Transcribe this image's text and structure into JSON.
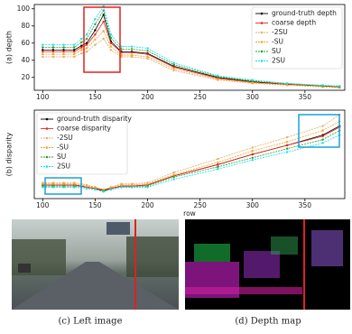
{
  "chart_data": [
    {
      "type": "line",
      "ylabel": "(a) depth",
      "legend": "upper right",
      "x": [
        100,
        110,
        120,
        130,
        137,
        142,
        150,
        158,
        165,
        175,
        185,
        200,
        225,
        267,
        300,
        333,
        367,
        383
      ],
      "xlim": [
        92,
        388
      ],
      "xticks": [
        100,
        150,
        200,
        250,
        300,
        350
      ],
      "ylim": [
        5,
        105
      ],
      "yticks": [
        20,
        40,
        60,
        80,
        100
      ],
      "series": [
        {
          "name": "ground-truth depth",
          "color": "#000000",
          "values": [
            52,
            52,
            52,
            52,
            57,
            60,
            75,
            93,
            62,
            50,
            50,
            48,
            33,
            20,
            15,
            12,
            10,
            9
          ]
        },
        {
          "name": "coarse depth",
          "color": "#e8281c",
          "values": [
            50,
            50,
            50,
            50,
            55,
            58,
            70,
            85,
            60,
            49,
            49,
            47,
            32,
            19,
            14,
            12,
            10,
            9
          ]
        },
        {
          "name": "-2SU",
          "color": "#e0b070",
          "values": [
            44,
            44,
            44,
            44,
            48,
            50,
            58,
            65,
            52,
            44,
            44,
            42,
            28,
            17,
            13,
            11,
            9,
            8
          ]
        },
        {
          "name": "-SU",
          "color": "#f5a623",
          "values": [
            47,
            47,
            47,
            47,
            52,
            54,
            64,
            74,
            56,
            46,
            46,
            44,
            30,
            18,
            14,
            11,
            9,
            8
          ]
        },
        {
          "name": "SU",
          "color": "#2ca02c",
          "values": [
            55,
            55,
            55,
            55,
            61,
            65,
            82,
            98,
            66,
            53,
            53,
            51,
            35,
            21,
            16,
            13,
            10,
            9
          ]
        },
        {
          "name": "2SU",
          "color": "#17e0f0",
          "values": [
            58,
            58,
            58,
            58,
            65,
            70,
            88,
            103,
            70,
            56,
            56,
            54,
            37,
            22,
            17,
            13,
            11,
            10
          ]
        }
      ]
    },
    {
      "type": "line",
      "ylabel": "(b) disparity",
      "xlabel": "row",
      "legend": "upper left",
      "x": [
        100,
        110,
        120,
        130,
        137,
        142,
        150,
        158,
        165,
        175,
        185,
        200,
        225,
        267,
        300,
        333,
        367,
        383
      ],
      "xlim": [
        92,
        388
      ],
      "xticks": [
        100,
        150,
        200,
        250,
        300,
        350
      ],
      "ylim": [
        0,
        78
      ],
      "series": [
        {
          "name": "ground-truth disparity",
          "color": "#000000",
          "values": [
            12,
            12,
            12,
            12,
            11,
            10,
            9,
            7,
            9,
            11,
            11,
            12,
            20,
            30,
            39,
            47,
            56,
            64
          ]
        },
        {
          "name": "coarse disparity",
          "color": "#e8281c",
          "values": [
            12,
            12,
            12,
            12,
            11,
            10,
            9,
            8,
            9,
            11,
            11,
            12,
            20,
            30,
            39,
            47,
            55,
            63
          ]
        },
        {
          "name": "-2SU",
          "color": "#e0b070",
          "values": [
            14,
            14,
            14,
            14,
            13,
            12,
            10,
            8,
            10,
            13,
            13,
            14,
            23,
            35,
            45,
            54,
            64,
            74
          ]
        },
        {
          "name": "-SU",
          "color": "#f5a623",
          "values": [
            13,
            13,
            13,
            13,
            12,
            11,
            10,
            7.5,
            10,
            12,
            12,
            13,
            21,
            32,
            42,
            50,
            60,
            68
          ]
        },
        {
          "name": "SU",
          "color": "#2ca02c",
          "values": [
            11,
            11,
            11,
            11,
            10,
            9,
            8,
            6.5,
            8,
            10,
            10,
            11,
            19,
            28,
            36,
            44,
            52,
            60
          ]
        },
        {
          "name": "2SU",
          "color": "#17e0f0",
          "values": [
            10,
            10,
            10,
            10,
            10,
            9,
            8,
            6,
            8,
            10,
            10,
            10,
            17,
            26,
            34,
            41,
            49,
            56
          ]
        }
      ]
    }
  ],
  "captions": [
    "(c) Left image",
    "(d) Depth map"
  ]
}
